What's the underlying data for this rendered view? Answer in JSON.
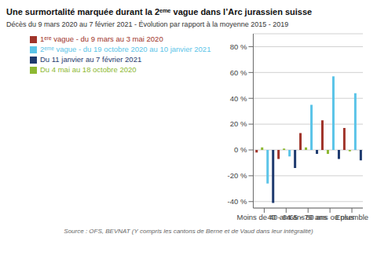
{
  "chart_data": {
    "type": "bar",
    "title": "Une surmortalité marquée durant la 2ᵉᵐᵉ vague dans l’Arc jurassien suisse",
    "subtitle": "Décès du 9 mars 2020 au 7 février 2021 - Évolution par rapport à la moyenne 2015 - 2019",
    "annotations": [
      "Source : OFS, BEVNAT (Y compris les cantons de Berne et de Vaud dans leur intégralité)"
    ],
    "categories": [
      "Moins de 40 ans",
      "40 - 64 ans",
      "65 - 79 ans",
      "80 ans ou plus",
      "Ensemble"
    ],
    "series": [
      {
        "name": "1ᵉʳᵉ vague - du 9 mars au 3 mai 2020",
        "color": "#a0342a",
        "values": [
          -2,
          -7,
          13,
          23,
          17
        ]
      },
      {
        "name": "Du 4 mai au 18 octobre 2020",
        "color": "#8db832",
        "values": [
          2,
          1,
          2,
          -3,
          -1
        ]
      },
      {
        "name": "2ᵉᵐᵉ vague - du 19 octobre 2020 au 10 janvier 2021",
        "color": "#5bc4e8",
        "values": [
          -26,
          -5,
          35,
          57,
          44
        ]
      },
      {
        "name": "Du 11 janvier au 7 février 2021",
        "color": "#1e3a6e",
        "values": [
          -41,
          -14,
          -3,
          -7,
          -8
        ]
      }
    ],
    "ylim": [
      -45,
      90
    ],
    "yticks": [
      {
        "value": -40,
        "label": "-40 %"
      },
      {
        "value": -20,
        "label": "-20 %"
      },
      {
        "value": 0,
        "label": "0 %"
      },
      {
        "value": 20,
        "label": "20 %"
      },
      {
        "value": 40,
        "label": "40 %"
      },
      {
        "value": 60,
        "label": "60 %"
      },
      {
        "value": 80,
        "label": "80 %"
      }
    ],
    "grid": true,
    "legend": "top left"
  }
}
